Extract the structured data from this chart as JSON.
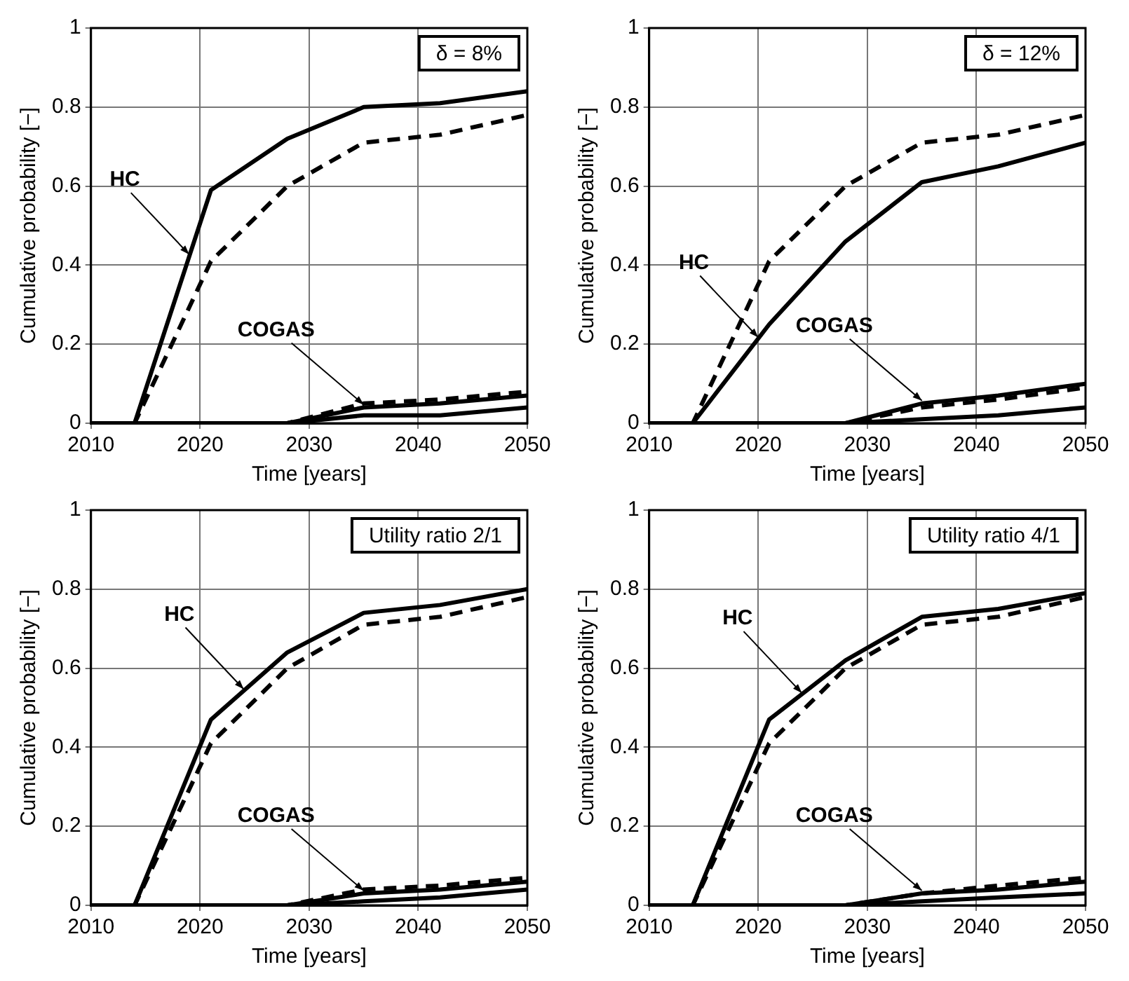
{
  "chart_data": [
    {
      "type": "line",
      "title": "δ = 8%",
      "xlabel": "Time [years]",
      "ylabel": "Cumulative probability [−]",
      "xlim": [
        2010,
        2050
      ],
      "xticks": [
        2010,
        2020,
        2030,
        2040,
        2050
      ],
      "ylim": [
        0,
        1
      ],
      "yticks": [
        0,
        0.2,
        0.4,
        0.6,
        0.8,
        1
      ],
      "grid": true,
      "legend": false,
      "marker": "none",
      "x": [
        2010,
        2014,
        2021,
        2028,
        2035,
        2042,
        2050
      ],
      "series": [
        {
          "color": "#000000",
          "line_style": "solid",
          "values": [
            0,
            0,
            0.59,
            0.72,
            0.8,
            0.81,
            0.84
          ]
        },
        {
          "color": "#000000",
          "line_style": "dashed",
          "values": [
            0,
            0,
            0.41,
            0.6,
            0.71,
            0.73,
            0.78
          ]
        },
        {
          "color": "#000000",
          "line_style": "solid",
          "values": [
            0,
            0,
            0,
            0,
            0.04,
            0.05,
            0.07
          ]
        },
        {
          "color": "#000000",
          "line_style": "dashed",
          "values": [
            0,
            0,
            0,
            0,
            0.05,
            0.06,
            0.08
          ]
        },
        {
          "color": "#000000",
          "line_style": "solid",
          "values": [
            0,
            0,
            0,
            0,
            0.02,
            0.02,
            0.04
          ]
        }
      ],
      "annotations": [
        {
          "text": "HC",
          "x": 2019,
          "y": 0.42
        },
        {
          "text": "COGAS",
          "x": 2035,
          "y": 0.04
        }
      ]
    },
    {
      "type": "line",
      "title": "δ = 12%",
      "xlabel": "Time [years]",
      "ylabel": "Cumulative probability [−]",
      "xlim": [
        2010,
        2050
      ],
      "xticks": [
        2010,
        2020,
        2030,
        2040,
        2050
      ],
      "ylim": [
        0,
        1
      ],
      "yticks": [
        0,
        0.2,
        0.4,
        0.6,
        0.8,
        1
      ],
      "grid": true,
      "legend": false,
      "marker": "none",
      "x": [
        2010,
        2014,
        2021,
        2028,
        2035,
        2042,
        2050
      ],
      "series": [
        {
          "color": "#000000",
          "line_style": "solid",
          "values": [
            0,
            0,
            0.25,
            0.46,
            0.61,
            0.65,
            0.71
          ]
        },
        {
          "color": "#000000",
          "line_style": "dashed",
          "values": [
            0,
            0,
            0.41,
            0.6,
            0.71,
            0.73,
            0.78
          ]
        },
        {
          "color": "#000000",
          "line_style": "solid",
          "values": [
            0,
            0,
            0,
            0,
            0.05,
            0.07,
            0.1
          ]
        },
        {
          "color": "#000000",
          "line_style": "dashed",
          "values": [
            0,
            0,
            0,
            0,
            0.04,
            0.06,
            0.09
          ]
        },
        {
          "color": "#000000",
          "line_style": "solid",
          "values": [
            0,
            0,
            0,
            0,
            0.01,
            0.02,
            0.04
          ]
        }
      ],
      "annotations": [
        {
          "text": "HC",
          "x": 2020,
          "y": 0.21
        },
        {
          "text": "COGAS",
          "x": 2035,
          "y": 0.05
        }
      ]
    },
    {
      "type": "line",
      "title": "Utility ratio 2/1",
      "xlabel": "Time [years]",
      "ylabel": "Cumulative probability [−]",
      "xlim": [
        2010,
        2050
      ],
      "xticks": [
        2010,
        2020,
        2030,
        2040,
        2050
      ],
      "ylim": [
        0,
        1
      ],
      "yticks": [
        0,
        0.2,
        0.4,
        0.6,
        0.8,
        1
      ],
      "grid": true,
      "legend": false,
      "marker": "none",
      "x": [
        2010,
        2014,
        2021,
        2028,
        2035,
        2042,
        2050
      ],
      "series": [
        {
          "color": "#000000",
          "line_style": "solid",
          "values": [
            0,
            0,
            0.47,
            0.64,
            0.74,
            0.76,
            0.8
          ]
        },
        {
          "color": "#000000",
          "line_style": "dashed",
          "values": [
            0,
            0,
            0.41,
            0.6,
            0.71,
            0.73,
            0.78
          ]
        },
        {
          "color": "#000000",
          "line_style": "solid",
          "values": [
            0,
            0,
            0,
            0,
            0.03,
            0.04,
            0.06
          ]
        },
        {
          "color": "#000000",
          "line_style": "dashed",
          "values": [
            0,
            0,
            0,
            0,
            0.04,
            0.05,
            0.07
          ]
        },
        {
          "color": "#000000",
          "line_style": "solid",
          "values": [
            0,
            0,
            0,
            0,
            0.01,
            0.02,
            0.04
          ]
        }
      ],
      "annotations": [
        {
          "text": "HC",
          "x": 2024,
          "y": 0.54
        },
        {
          "text": "COGAS",
          "x": 2035,
          "y": 0.03
        }
      ]
    },
    {
      "type": "line",
      "title": "Utility ratio 4/1",
      "xlabel": "Time [years]",
      "ylabel": "Cumulative probability [−]",
      "xlim": [
        2010,
        2050
      ],
      "xticks": [
        2010,
        2020,
        2030,
        2040,
        2050
      ],
      "ylim": [
        0,
        1
      ],
      "yticks": [
        0,
        0.2,
        0.4,
        0.6,
        0.8,
        1
      ],
      "grid": true,
      "legend": false,
      "marker": "none",
      "x": [
        2010,
        2014,
        2021,
        2028,
        2035,
        2042,
        2050
      ],
      "series": [
        {
          "color": "#000000",
          "line_style": "solid",
          "values": [
            0,
            0,
            0.47,
            0.62,
            0.73,
            0.75,
            0.79
          ]
        },
        {
          "color": "#000000",
          "line_style": "dashed",
          "values": [
            0,
            0,
            0.41,
            0.6,
            0.71,
            0.73,
            0.78
          ]
        },
        {
          "color": "#000000",
          "line_style": "solid",
          "values": [
            0,
            0,
            0,
            0,
            0.03,
            0.04,
            0.06
          ]
        },
        {
          "color": "#000000",
          "line_style": "dashed",
          "values": [
            0,
            0,
            0,
            0,
            0.03,
            0.05,
            0.07
          ]
        },
        {
          "color": "#000000",
          "line_style": "solid",
          "values": [
            0,
            0,
            0,
            0,
            0.01,
            0.02,
            0.03
          ]
        }
      ],
      "annotations": [
        {
          "text": "HC",
          "x": 2024,
          "y": 0.53
        },
        {
          "text": "COGAS",
          "x": 2035,
          "y": 0.03
        }
      ]
    }
  ]
}
